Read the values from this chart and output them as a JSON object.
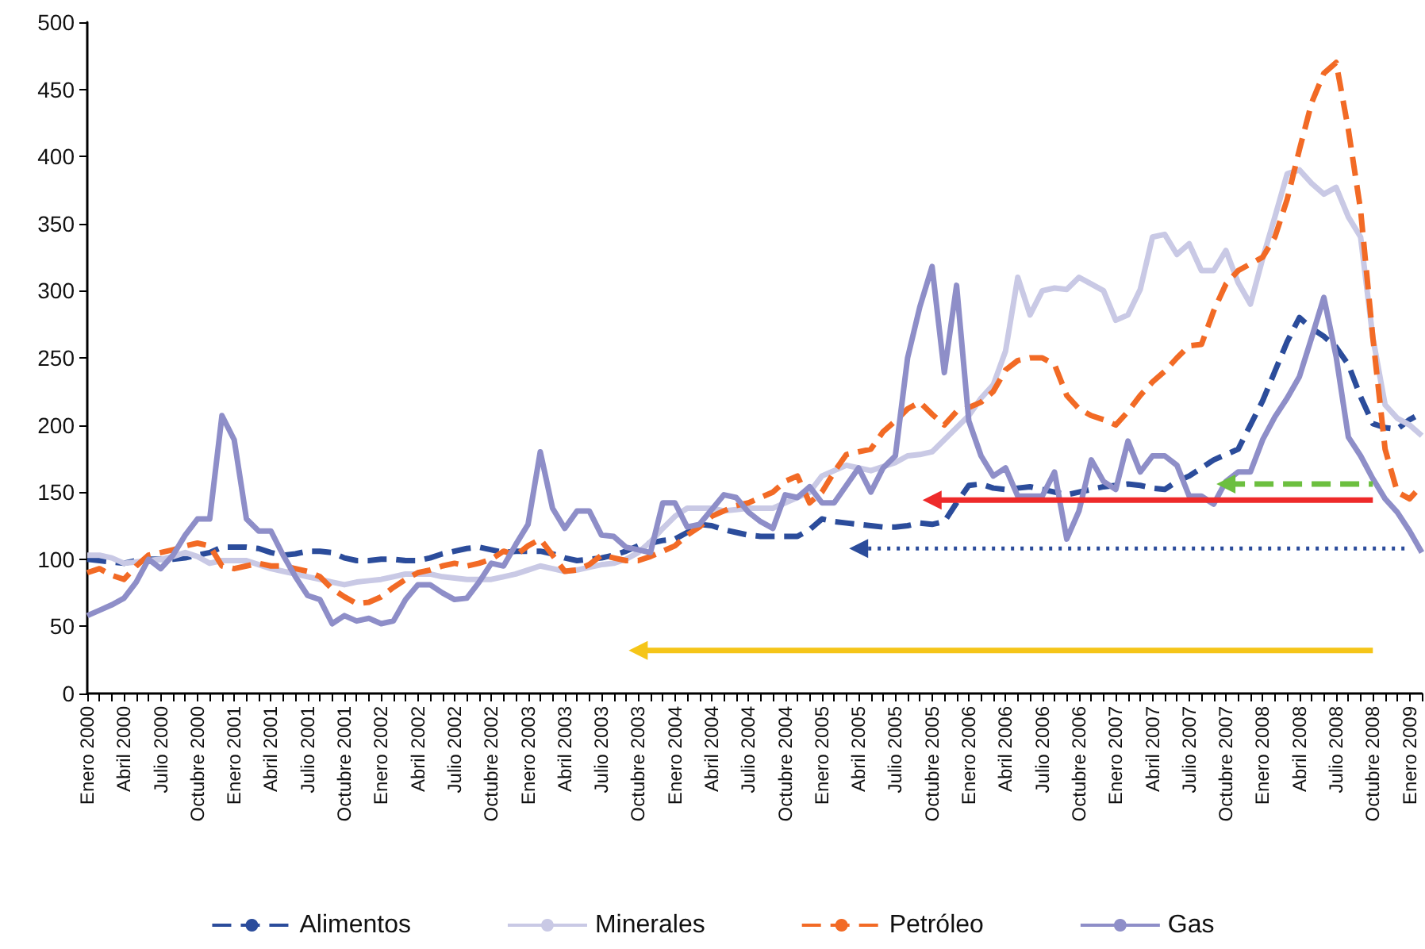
{
  "chart_data": {
    "type": "line",
    "categories": [
      "Enero 2000",
      null,
      null,
      "Abril 2000",
      null,
      null,
      "Julio 2000",
      null,
      null,
      "Octubre 2000",
      null,
      null,
      "Enero 2001",
      null,
      null,
      "Abril 2001",
      null,
      null,
      "Julio 2001",
      null,
      null,
      "Octubre 2001",
      null,
      null,
      "Enero 2002",
      null,
      null,
      "Abril 2002",
      null,
      null,
      "Julio 2002",
      null,
      null,
      "Octubre 2002",
      null,
      null,
      "Enero 2003",
      null,
      null,
      "Abril 2003",
      null,
      null,
      "Julio 2003",
      null,
      null,
      "Octubre 2003",
      null,
      null,
      "Enero 2004",
      null,
      null,
      "Abril 2004",
      null,
      null,
      "Julio 2004",
      null,
      null,
      "Octubre 2004",
      null,
      null,
      "Enero 2005",
      null,
      null,
      "Abril 2005",
      null,
      null,
      "Julio 2005",
      null,
      null,
      "Octubre 2005",
      null,
      null,
      "Enero 2006",
      null,
      null,
      "Abril 2006",
      null,
      null,
      "Julio 2006",
      null,
      null,
      "Octubre 2006",
      null,
      null,
      "Enero 2007",
      null,
      null,
      "Abril 2007",
      null,
      null,
      "Julio 2007",
      null,
      null,
      "Octubre 2007",
      null,
      null,
      "Enero 2008",
      null,
      null,
      "Abril 2008",
      null,
      null,
      "Julio 2008",
      null,
      null,
      "Octubre 2008",
      null,
      null,
      "Enero 2009",
      null
    ],
    "series": [
      {
        "name": "Alimentos",
        "color": "#2b4c9b",
        "line_style": "dashed",
        "values": [
          100,
          99,
          98,
          97,
          99,
          100,
          100,
          100,
          101,
          103,
          105,
          109,
          109,
          109,
          108,
          105,
          103,
          104,
          106,
          106,
          105,
          101,
          99,
          99,
          100,
          100,
          99,
          99,
          101,
          104,
          106,
          108,
          109,
          107,
          105,
          106,
          106,
          106,
          104,
          101,
          99,
          100,
          101,
          103,
          106,
          110,
          112,
          114,
          115,
          120,
          126,
          125,
          122,
          120,
          118,
          117,
          117,
          117,
          117,
          122,
          130,
          128,
          127,
          126,
          125,
          124,
          124,
          125,
          127,
          126,
          128,
          142,
          155,
          156,
          153,
          152,
          153,
          154,
          152,
          150,
          148,
          150,
          152,
          154,
          155,
          156,
          155,
          153,
          152,
          158,
          162,
          168,
          174,
          178,
          182,
          200,
          218,
          240,
          262,
          280,
          272,
          266,
          258,
          245,
          221,
          201,
          198,
          197,
          204,
          209
        ]
      },
      {
        "name": "Minerales",
        "color": "#c9c9e5",
        "line_style": "solid",
        "values": [
          103,
          103,
          101,
          97,
          98,
          99,
          100,
          102,
          105,
          102,
          97,
          99,
          99,
          99,
          96,
          93,
          91,
          89,
          87,
          85,
          83,
          81,
          83,
          84,
          85,
          87,
          89,
          89,
          89,
          87,
          86,
          85,
          85,
          85,
          87,
          89,
          92,
          95,
          93,
          91,
          92,
          94,
          96,
          97,
          100,
          105,
          113,
          123,
          132,
          138,
          138,
          138,
          136,
          137,
          138,
          138,
          138,
          142,
          146,
          150,
          162,
          166,
          170,
          168,
          166,
          169,
          172,
          177,
          178,
          180,
          189,
          198,
          207,
          220,
          230,
          255,
          310,
          282,
          300,
          302,
          301,
          310,
          305,
          300,
          278,
          282,
          301,
          340,
          342,
          327,
          335,
          315,
          315,
          330,
          306,
          290,
          324,
          355,
          387,
          390,
          380,
          372,
          377,
          355,
          340,
          265,
          215,
          205,
          200,
          192
        ]
      },
      {
        "name": "Petróleo",
        "color": "#f26a25",
        "line_style": "dashed",
        "values": [
          90,
          93,
          88,
          85,
          95,
          103,
          105,
          107,
          110,
          112,
          110,
          95,
          93,
          95,
          97,
          95,
          95,
          93,
          91,
          87,
          78,
          72,
          67,
          68,
          72,
          79,
          85,
          90,
          92,
          95,
          97,
          95,
          97,
          100,
          106,
          103,
          110,
          115,
          103,
          91,
          92,
          96,
          103,
          101,
          99,
          99,
          102,
          106,
          110,
          118,
          124,
          132,
          136,
          140,
          142,
          146,
          150,
          158,
          162,
          142,
          150,
          165,
          178,
          180,
          182,
          195,
          203,
          212,
          217,
          208,
          200,
          210,
          213,
          217,
          225,
          241,
          248,
          250,
          250,
          245,
          222,
          212,
          207,
          204,
          200,
          210,
          222,
          232,
          240,
          250,
          259,
          260,
          285,
          305,
          315,
          320,
          325,
          340,
          368,
          405,
          440,
          462,
          470,
          420,
          360,
          265,
          182,
          150,
          145,
          155
        ]
      },
      {
        "name": "Gas",
        "color": "#8e8ec8",
        "line_style": "solid",
        "values": [
          58,
          62,
          66,
          71,
          83,
          100,
          93,
          103,
          118,
          130,
          130,
          207,
          189,
          130,
          121,
          121,
          103,
          87,
          73,
          70,
          52,
          58,
          54,
          56,
          52,
          54,
          70,
          81,
          81,
          75,
          70,
          71,
          83,
          97,
          95,
          111,
          126,
          180,
          138,
          123,
          136,
          136,
          118,
          117,
          109,
          107,
          105,
          142,
          142,
          124,
          126,
          137,
          148,
          146,
          135,
          128,
          123,
          148,
          146,
          154,
          142,
          142,
          155,
          168,
          150,
          168,
          177,
          250,
          288,
          318,
          239,
          304,
          203,
          177,
          162,
          168,
          147,
          147,
          147,
          165,
          115,
          136,
          174,
          158,
          152,
          188,
          165,
          177,
          177,
          170,
          147,
          147,
          141,
          158,
          165,
          165,
          189,
          206,
          220,
          236,
          265,
          295,
          251,
          191,
          177,
          160,
          145,
          135,
          121,
          105
        ]
      },
      {
        "color": "#f5c518",
        "line_style": "solid",
        "marker": "triangle",
        "x": [
          "Octubre 2003",
          "Octubre 2008"
        ],
        "values": [
          32,
          32
        ]
      },
      {
        "color": "#2b4c9b",
        "line_style": "dotted",
        "marker": "triangle",
        "x": [
          "Abril 2005",
          "Enero 2009"
        ],
        "values": [
          108,
          108
        ]
      },
      {
        "color": "#ee2a2a",
        "line_style": "solid",
        "marker": "triangle",
        "x": [
          "Octubre 2005",
          "Octubre 2008"
        ],
        "values": [
          144,
          144
        ]
      },
      {
        "color": "#6cbf3f",
        "line_style": "dashed",
        "marker": "triangle",
        "x": [
          "Octubre 2007",
          "Octubre 2008"
        ],
        "values": [
          156,
          156
        ]
      }
    ],
    "marker": "none",
    "ylim": [
      0,
      500
    ],
    "yticks": [
      0,
      50,
      100,
      150,
      200,
      250,
      300,
      350,
      400,
      450,
      500
    ],
    "legend": "bottom"
  }
}
